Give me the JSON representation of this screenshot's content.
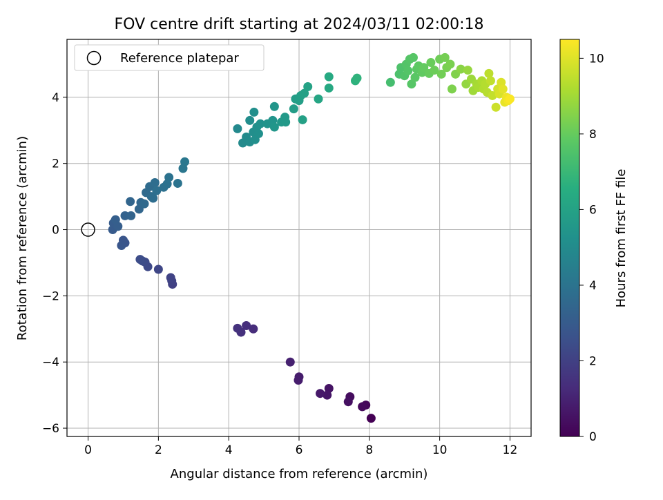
{
  "chart_data": {
    "type": "scatter",
    "title": "FOV centre drift starting at 2024/03/11 02:00:18",
    "xlabel": "Angular distance from reference (arcmin)",
    "ylabel": "Rotation from reference (arcmin)",
    "xlim": [
      -0.6,
      12.6
    ],
    "ylim": [
      -6.25,
      5.75
    ],
    "xticks": [
      0,
      2,
      4,
      6,
      8,
      10,
      12
    ],
    "yticks": [
      -6,
      -4,
      -2,
      0,
      2,
      4
    ],
    "grid": true,
    "legend": {
      "position": "top-left",
      "entries": [
        "Reference platepar"
      ]
    },
    "reference_point": {
      "x": 0,
      "y": 0
    },
    "colorbar": {
      "label": "Hours from first FF file",
      "min": 0,
      "max": 10.5,
      "ticks": [
        0,
        2,
        4,
        6,
        8,
        10
      ],
      "colormap": "viridis"
    },
    "points": [
      {
        "x": 8.05,
        "y": -5.7,
        "t": 0.0
      },
      {
        "x": 7.9,
        "y": -5.3,
        "t": 0.15
      },
      {
        "x": 7.8,
        "y": -5.35,
        "t": 0.25
      },
      {
        "x": 7.45,
        "y": -5.05,
        "t": 0.35
      },
      {
        "x": 7.4,
        "y": -5.2,
        "t": 0.45
      },
      {
        "x": 6.85,
        "y": -4.8,
        "t": 0.55
      },
      {
        "x": 6.8,
        "y": -5.0,
        "t": 0.6
      },
      {
        "x": 6.6,
        "y": -4.95,
        "t": 0.7
      },
      {
        "x": 6.0,
        "y": -4.45,
        "t": 0.8
      },
      {
        "x": 5.98,
        "y": -4.55,
        "t": 0.85
      },
      {
        "x": 5.75,
        "y": -4.0,
        "t": 0.95
      },
      {
        "x": 4.7,
        "y": -3.0,
        "t": 1.3
      },
      {
        "x": 4.5,
        "y": -2.9,
        "t": 1.4
      },
      {
        "x": 4.35,
        "y": -3.1,
        "t": 1.45
      },
      {
        "x": 4.25,
        "y": -2.98,
        "t": 1.5
      },
      {
        "x": 2.4,
        "y": -1.65,
        "t": 2.0
      },
      {
        "x": 2.38,
        "y": -1.55,
        "t": 2.05
      },
      {
        "x": 2.35,
        "y": -1.45,
        "t": 2.1
      },
      {
        "x": 2.0,
        "y": -1.2,
        "t": 2.2
      },
      {
        "x": 1.7,
        "y": -1.12,
        "t": 2.3
      },
      {
        "x": 1.62,
        "y": -0.98,
        "t": 2.35
      },
      {
        "x": 1.55,
        "y": -0.95,
        "t": 2.4
      },
      {
        "x": 1.48,
        "y": -0.9,
        "t": 2.45
      },
      {
        "x": 1.05,
        "y": -0.4,
        "t": 2.7
      },
      {
        "x": 1.0,
        "y": -0.32,
        "t": 2.75
      },
      {
        "x": 0.95,
        "y": -0.48,
        "t": 2.8
      },
      {
        "x": 0.7,
        "y": 0.0,
        "t": 3.0
      },
      {
        "x": 0.72,
        "y": 0.2,
        "t": 3.05
      },
      {
        "x": 0.85,
        "y": 0.1,
        "t": 3.1
      },
      {
        "x": 0.78,
        "y": 0.3,
        "t": 3.15
      },
      {
        "x": 1.05,
        "y": 0.42,
        "t": 3.3
      },
      {
        "x": 1.22,
        "y": 0.42,
        "t": 3.35
      },
      {
        "x": 1.2,
        "y": 0.85,
        "t": 3.4
      },
      {
        "x": 1.45,
        "y": 0.62,
        "t": 3.45
      },
      {
        "x": 1.5,
        "y": 0.82,
        "t": 3.5
      },
      {
        "x": 1.6,
        "y": 0.78,
        "t": 3.55
      },
      {
        "x": 1.65,
        "y": 1.12,
        "t": 3.6
      },
      {
        "x": 1.75,
        "y": 1.3,
        "t": 3.65
      },
      {
        "x": 1.8,
        "y": 1.0,
        "t": 3.7
      },
      {
        "x": 1.85,
        "y": 0.95,
        "t": 3.72
      },
      {
        "x": 1.9,
        "y": 1.42,
        "t": 3.75
      },
      {
        "x": 1.95,
        "y": 1.18,
        "t": 3.8
      },
      {
        "x": 2.15,
        "y": 1.28,
        "t": 3.85
      },
      {
        "x": 2.25,
        "y": 1.38,
        "t": 3.9
      },
      {
        "x": 2.3,
        "y": 1.58,
        "t": 3.95
      },
      {
        "x": 2.55,
        "y": 1.4,
        "t": 4.0
      },
      {
        "x": 2.7,
        "y": 1.85,
        "t": 4.1
      },
      {
        "x": 2.75,
        "y": 2.05,
        "t": 4.15
      },
      {
        "x": 4.25,
        "y": 3.05,
        "t": 4.9
      },
      {
        "x": 4.4,
        "y": 2.62,
        "t": 4.95
      },
      {
        "x": 4.5,
        "y": 2.8,
        "t": 5.0
      },
      {
        "x": 4.6,
        "y": 2.65,
        "t": 5.05
      },
      {
        "x": 4.6,
        "y": 3.3,
        "t": 5.1
      },
      {
        "x": 4.7,
        "y": 2.95,
        "t": 5.12
      },
      {
        "x": 4.72,
        "y": 3.55,
        "t": 5.15
      },
      {
        "x": 4.75,
        "y": 2.72,
        "t": 5.18
      },
      {
        "x": 4.8,
        "y": 3.1,
        "t": 5.2
      },
      {
        "x": 4.85,
        "y": 2.9,
        "t": 5.22
      },
      {
        "x": 4.9,
        "y": 3.2,
        "t": 5.25
      },
      {
        "x": 5.1,
        "y": 3.2,
        "t": 5.35
      },
      {
        "x": 5.25,
        "y": 3.3,
        "t": 5.4
      },
      {
        "x": 5.3,
        "y": 3.72,
        "t": 5.45
      },
      {
        "x": 5.3,
        "y": 3.1,
        "t": 5.47
      },
      {
        "x": 5.5,
        "y": 3.25,
        "t": 5.55
      },
      {
        "x": 5.6,
        "y": 3.4,
        "t": 5.6
      },
      {
        "x": 5.62,
        "y": 3.25,
        "t": 5.62
      },
      {
        "x": 5.85,
        "y": 3.65,
        "t": 5.75
      },
      {
        "x": 5.9,
        "y": 3.95,
        "t": 5.8
      },
      {
        "x": 6.0,
        "y": 3.9,
        "t": 5.85
      },
      {
        "x": 6.05,
        "y": 4.05,
        "t": 5.9
      },
      {
        "x": 6.1,
        "y": 3.32,
        "t": 5.92
      },
      {
        "x": 6.15,
        "y": 4.12,
        "t": 5.95
      },
      {
        "x": 6.25,
        "y": 4.32,
        "t": 6.0
      },
      {
        "x": 6.55,
        "y": 3.95,
        "t": 6.15
      },
      {
        "x": 6.85,
        "y": 4.28,
        "t": 6.3
      },
      {
        "x": 6.85,
        "y": 4.62,
        "t": 6.35
      },
      {
        "x": 7.6,
        "y": 4.5,
        "t": 6.7
      },
      {
        "x": 7.65,
        "y": 4.58,
        "t": 6.75
      },
      {
        "x": 8.6,
        "y": 4.45,
        "t": 7.3
      },
      {
        "x": 8.85,
        "y": 4.7,
        "t": 7.45
      },
      {
        "x": 8.9,
        "y": 4.9,
        "t": 7.5
      },
      {
        "x": 9.0,
        "y": 4.65,
        "t": 7.55
      },
      {
        "x": 9.05,
        "y": 5.0,
        "t": 7.6
      },
      {
        "x": 9.1,
        "y": 4.8,
        "t": 7.62
      },
      {
        "x": 9.15,
        "y": 5.15,
        "t": 7.65
      },
      {
        "x": 9.2,
        "y": 4.4,
        "t": 7.68
      },
      {
        "x": 9.25,
        "y": 5.2,
        "t": 7.7
      },
      {
        "x": 9.3,
        "y": 4.6,
        "t": 7.75
      },
      {
        "x": 9.35,
        "y": 4.85,
        "t": 7.8
      },
      {
        "x": 9.4,
        "y": 4.95,
        "t": 7.85
      },
      {
        "x": 9.5,
        "y": 4.75,
        "t": 7.9
      },
      {
        "x": 9.55,
        "y": 4.9,
        "t": 7.95
      },
      {
        "x": 9.7,
        "y": 4.72,
        "t": 8.0
      },
      {
        "x": 9.75,
        "y": 5.05,
        "t": 8.05
      },
      {
        "x": 9.85,
        "y": 4.82,
        "t": 8.1
      },
      {
        "x": 10.0,
        "y": 5.15,
        "t": 8.15
      },
      {
        "x": 10.05,
        "y": 4.7,
        "t": 8.2
      },
      {
        "x": 10.15,
        "y": 5.2,
        "t": 8.25
      },
      {
        "x": 10.2,
        "y": 4.9,
        "t": 8.3
      },
      {
        "x": 10.3,
        "y": 5.0,
        "t": 8.35
      },
      {
        "x": 10.35,
        "y": 4.25,
        "t": 8.4
      },
      {
        "x": 10.45,
        "y": 4.7,
        "t": 8.45
      },
      {
        "x": 10.6,
        "y": 4.85,
        "t": 8.6
      },
      {
        "x": 10.75,
        "y": 4.4,
        "t": 8.75
      },
      {
        "x": 10.8,
        "y": 4.82,
        "t": 8.8
      },
      {
        "x": 10.9,
        "y": 4.55,
        "t": 8.9
      },
      {
        "x": 10.95,
        "y": 4.2,
        "t": 8.95
      },
      {
        "x": 11.05,
        "y": 4.4,
        "t": 9.05
      },
      {
        "x": 11.1,
        "y": 4.3,
        "t": 9.1
      },
      {
        "x": 11.2,
        "y": 4.5,
        "t": 9.2
      },
      {
        "x": 11.25,
        "y": 4.25,
        "t": 9.25
      },
      {
        "x": 11.3,
        "y": 4.4,
        "t": 9.3
      },
      {
        "x": 11.35,
        "y": 4.15,
        "t": 9.35
      },
      {
        "x": 11.4,
        "y": 4.72,
        "t": 9.45
      },
      {
        "x": 11.45,
        "y": 4.5,
        "t": 9.5
      },
      {
        "x": 11.5,
        "y": 4.05,
        "t": 9.55
      },
      {
        "x": 11.6,
        "y": 3.7,
        "t": 9.7
      },
      {
        "x": 11.65,
        "y": 4.25,
        "t": 9.8
      },
      {
        "x": 11.7,
        "y": 4.1,
        "t": 9.9
      },
      {
        "x": 11.75,
        "y": 4.45,
        "t": 9.95
      },
      {
        "x": 11.8,
        "y": 4.25,
        "t": 10.05
      },
      {
        "x": 11.85,
        "y": 3.85,
        "t": 10.15
      },
      {
        "x": 11.9,
        "y": 4.0,
        "t": 10.25
      },
      {
        "x": 11.95,
        "y": 3.9,
        "t": 10.35
      },
      {
        "x": 12.0,
        "y": 3.95,
        "t": 10.45
      }
    ]
  }
}
